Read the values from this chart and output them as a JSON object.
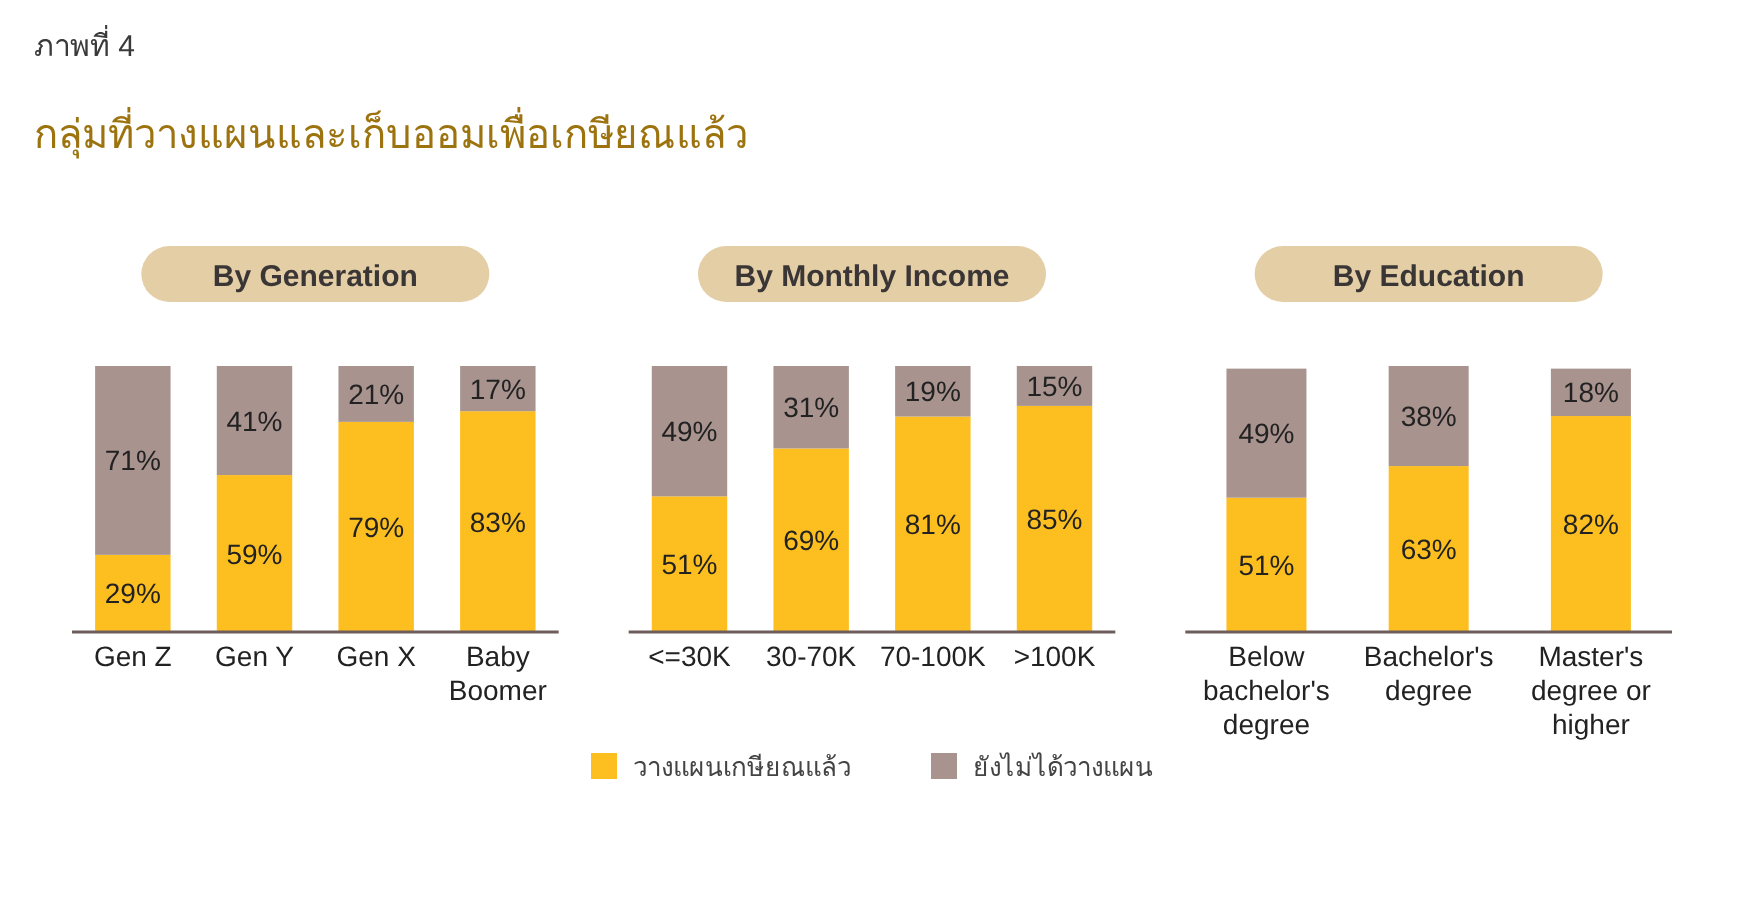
{
  "chart_data": [
    {
      "type": "bar",
      "title": "By Generation",
      "annotations": [
        "ภาพที่ 4",
        "กลุ่มที่วางแผนและเก็บออมเพื่อเกษียณแล้ว"
      ],
      "categories": [
        "Gen Z",
        "Gen Y",
        "Gen X",
        "Baby Boomer"
      ],
      "stacked": true,
      "series": [
        {
          "color": "#fdbf1f",
          "values": [
            29,
            59,
            79,
            83
          ],
          "value_labels": [
            "29%",
            "59%",
            "79%",
            "83%"
          ]
        },
        {
          "color": "#a8938f",
          "values": [
            71,
            41,
            21,
            17
          ],
          "value_labels": [
            "71%",
            "41%",
            "21%",
            "17%"
          ]
        }
      ]
    },
    {
      "type": "bar",
      "title": "By Monthly Income",
      "categories": [
        "<=30K",
        "30-70K",
        "70-100K",
        ">100K"
      ],
      "stacked": true,
      "legend": "bottom",
      "series": [
        {
          "name": "วางแผนเกษียณแล้ว",
          "color": "#fdbf1f",
          "values": [
            51,
            69,
            81,
            85
          ],
          "value_labels": [
            "51%",
            "69%",
            "81%",
            "85%"
          ]
        },
        {
          "name": "ยังไม่ได้วางแผน",
          "color": "#a8938f",
          "values": [
            49,
            31,
            19,
            15
          ],
          "value_labels": [
            "49%",
            "31%",
            "19%",
            "15%"
          ]
        }
      ]
    },
    {
      "type": "bar",
      "title": "By Education",
      "categories": [
        "Below bachelor's degree",
        "Bachelor's degree",
        "Master's degree or higher"
      ],
      "stacked": true,
      "series": [
        {
          "color": "#fdbf1f",
          "values": [
            51,
            63,
            82
          ],
          "value_labels": [
            "51%",
            "63%",
            "82%"
          ]
        },
        {
          "color": "#a8938f",
          "values": [
            49,
            38,
            18
          ],
          "value_labels": [
            "49%",
            "38%",
            "18%"
          ]
        }
      ]
    }
  ]
}
